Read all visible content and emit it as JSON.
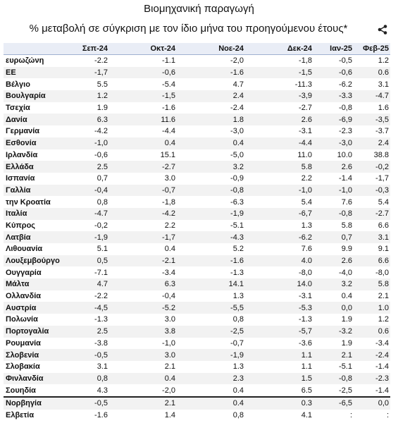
{
  "header": {
    "title": "Βιομηχανική παραγωγή",
    "subtitle": "% μεταβολή σε σύγκριση με τον ίδιο μήνα του προηγούμενου έτους*"
  },
  "table": {
    "columns": [
      "Σεπ-24",
      "Οκτ-24",
      "Νοε-24",
      "Δεκ-24",
      "Ιαν-25",
      "Φεβ-25"
    ],
    "rows": [
      [
        "ευρωζώνη",
        "-2.2",
        "-1.1",
        "-2,0",
        "-1,8",
        "-0,5",
        "1.2"
      ],
      [
        "ΕΕ",
        "-1,7",
        "-0,6",
        "-1.6",
        "-1,5",
        "-0,6",
        "0.6"
      ],
      [
        "Βέλγιο",
        "5.5",
        "-5.4",
        "4.7",
        "-11.3",
        "-6.2",
        "3.1"
      ],
      [
        "Βουλγαρία",
        "1.2",
        "-1,5",
        "2.4",
        "-3,9",
        "-3.3",
        "-4.7"
      ],
      [
        "Τσεχία",
        "1.9",
        "-1.6",
        "-2.4",
        "-2.7",
        "-0,8",
        "1.6"
      ],
      [
        "Δανία",
        "6.3",
        "11.6",
        "1.8",
        "2.6",
        "-6,9",
        "-3,5"
      ],
      [
        "Γερμανία",
        "-4.2",
        "-4.4",
        "-3,0",
        "-3.1",
        "-2.3",
        "-3.7"
      ],
      [
        "Εσθονία",
        "-1,0",
        "0.4",
        "0.4",
        "-4.4",
        "-3,0",
        "2.4"
      ],
      [
        "Ιρλανδία",
        "-0,6",
        "15.1",
        "-5,0",
        "11.0",
        "10.0",
        "38.8"
      ],
      [
        "Ελλάδα",
        "2.5",
        "-2.7",
        "3.2",
        "5.8",
        "2.6",
        "-0,2"
      ],
      [
        "Ισπανία",
        "0,7",
        "3.0",
        "-0,9",
        "2.2",
        "-1.4",
        "-1,7"
      ],
      [
        "Γαλλία",
        "-0,4",
        "-0,7",
        "-0,8",
        "-1,0",
        "-1,0",
        "-0,3"
      ],
      [
        "την Κροατία",
        "0,8",
        "-1,8",
        "-6.3",
        "5.4",
        "7.6",
        "5.4"
      ],
      [
        "Ιταλία",
        "-4.7",
        "-4.2",
        "-1,9",
        "-6,7",
        "-0,8",
        "-2.7"
      ],
      [
        "Κύπρος",
        "-0,2",
        "2.2",
        "-5.1",
        "1.3",
        "5.8",
        "6.6"
      ],
      [
        "Λατβία",
        "-1,9",
        "-1,7",
        "-4.3",
        "-6.2",
        "0,7",
        "3.1"
      ],
      [
        "Λιθουανία",
        "5.1",
        "0.4",
        "5.2",
        "7.6",
        "9.9",
        "9.1"
      ],
      [
        "Λουξεμβούργο",
        "0,5",
        "-2.1",
        "-1.6",
        "4.0",
        "2.6",
        "6.6"
      ],
      [
        "Ουγγαρία",
        "-7.1",
        "-3.4",
        "-1.3",
        "-8,0",
        "-4,0",
        "-8,0"
      ],
      [
        "Μάλτα",
        "4.7",
        "6.3",
        "14.1",
        "14.0",
        "3.2",
        "5.8"
      ],
      [
        "Ολλανδία",
        "-2.2",
        "-0,4",
        "1.3",
        "-3.1",
        "0.4",
        "2.1"
      ],
      [
        "Αυστρία",
        "-4,5",
        "-5.2",
        "-5,5",
        "-5.3",
        "0,0",
        "1.0"
      ],
      [
        "Πολωνία",
        "-1.3",
        "3.0",
        "0,8",
        "-1.3",
        "1.9",
        "1.2"
      ],
      [
        "Πορτογαλία",
        "2.5",
        "3.8",
        "-2,5",
        "-5,7",
        "-3.2",
        "0.6"
      ],
      [
        "Ρουμανία",
        "-3.8",
        "-1,0",
        "-0,7",
        "-3.6",
        "1.9",
        "-3.4"
      ],
      [
        "Σλοβενία",
        "-0,5",
        "3.0",
        "-1,9",
        "1.1",
        "2.1",
        "-2.4"
      ],
      [
        "Σλοβακία",
        "3.1",
        "2.1",
        "1.3",
        "1.1",
        "-5.1",
        "-1.4"
      ],
      [
        "Φινλανδία",
        "0,8",
        "0.4",
        "2.3",
        "1.5",
        "-0,8",
        "-2.3"
      ],
      [
        "Σουηδία",
        "4.3",
        "-2,0",
        "0.4",
        "6.5",
        "-2,5",
        "-1.4"
      ],
      [
        "Νορβηγία",
        "-0,5",
        "2.1",
        "0.4",
        "0.3",
        "-6,5",
        "0,0"
      ],
      [
        "Ελβετία",
        "-1.6",
        "1.4",
        "0,8",
        "4.1",
        ":",
        ":"
      ]
    ]
  }
}
